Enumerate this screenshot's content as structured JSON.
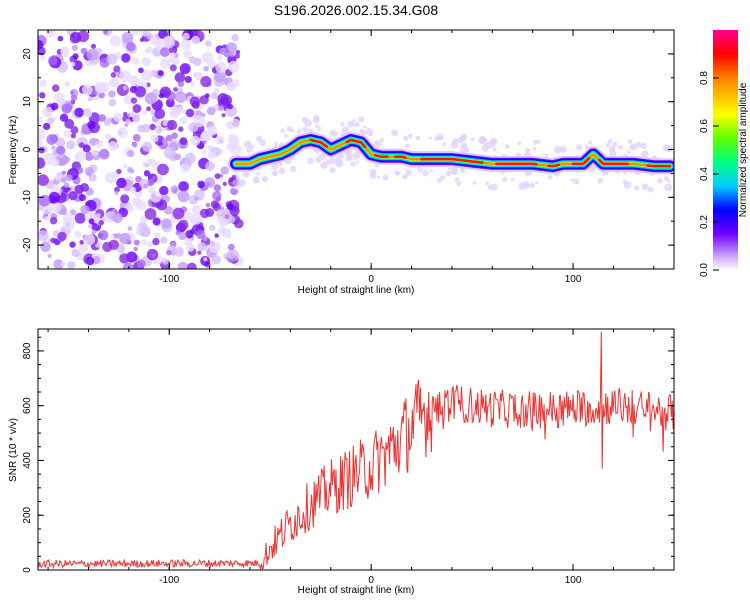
{
  "title": "S196.2026.002.15.34.G08",
  "chart_data": [
    {
      "type": "heatmap",
      "name": "spectrogram",
      "xlabel": "Height of straight line (km)",
      "ylabel": "Frequency (Hz)",
      "xlim": [
        -165,
        150
      ],
      "ylim": [
        -25,
        25
      ],
      "xticks": [
        -100,
        0,
        100
      ],
      "yticks": [
        -20,
        -10,
        0,
        10,
        20
      ],
      "noise_region_x": [
        -165,
        -65
      ],
      "ridge": {
        "x": [
          -67,
          -60,
          -55,
          -50,
          -45,
          -40,
          -35,
          -30,
          -25,
          -20,
          -15,
          -10,
          -5,
          0,
          5,
          10,
          15,
          20,
          30,
          40,
          50,
          60,
          70,
          80,
          90,
          95,
          100,
          105,
          110,
          115,
          120,
          130,
          140,
          148
        ],
        "freq_hz": [
          -3.0,
          -3.0,
          -2.0,
          -1.5,
          -1.0,
          0.0,
          1.5,
          2.0,
          1.5,
          0.0,
          1.0,
          2.0,
          1.5,
          -1.0,
          -1.5,
          -1.5,
          -1.5,
          -2.0,
          -2.0,
          -2.0,
          -2.5,
          -3.0,
          -3.0,
          -3.0,
          -3.5,
          -3.0,
          -3.0,
          -3.0,
          -1.0,
          -3.0,
          -3.0,
          -3.0,
          -3.5,
          -3.5
        ]
      },
      "colorbar": {
        "label": "Normalized spectral amplitude",
        "range": [
          0,
          1
        ],
        "ticks": [
          0.0,
          0.2,
          0.4,
          0.6,
          0.8
        ]
      }
    },
    {
      "type": "line",
      "name": "snr",
      "xlabel": "Height of straight line (km)",
      "ylabel": "SNR (10 * v/v)",
      "xlim": [
        -165,
        150
      ],
      "ylim": [
        0,
        880
      ],
      "xticks": [
        -100,
        0,
        100
      ],
      "yticks": [
        0,
        200,
        400,
        600,
        800
      ],
      "color": "#ee3333",
      "trend": {
        "x": [
          -165,
          -55,
          -50,
          -40,
          -30,
          -20,
          -10,
          0,
          10,
          20,
          30,
          40,
          60,
          80,
          100,
          120,
          150
        ],
        "y": [
          22,
          25,
          80,
          170,
          240,
          300,
          340,
          380,
          440,
          520,
          600,
          610,
          590,
          585,
          590,
          600,
          575
        ]
      },
      "peak": {
        "x": 114,
        "y": 870
      },
      "dip": {
        "x": 114,
        "y": 370
      }
    }
  ]
}
